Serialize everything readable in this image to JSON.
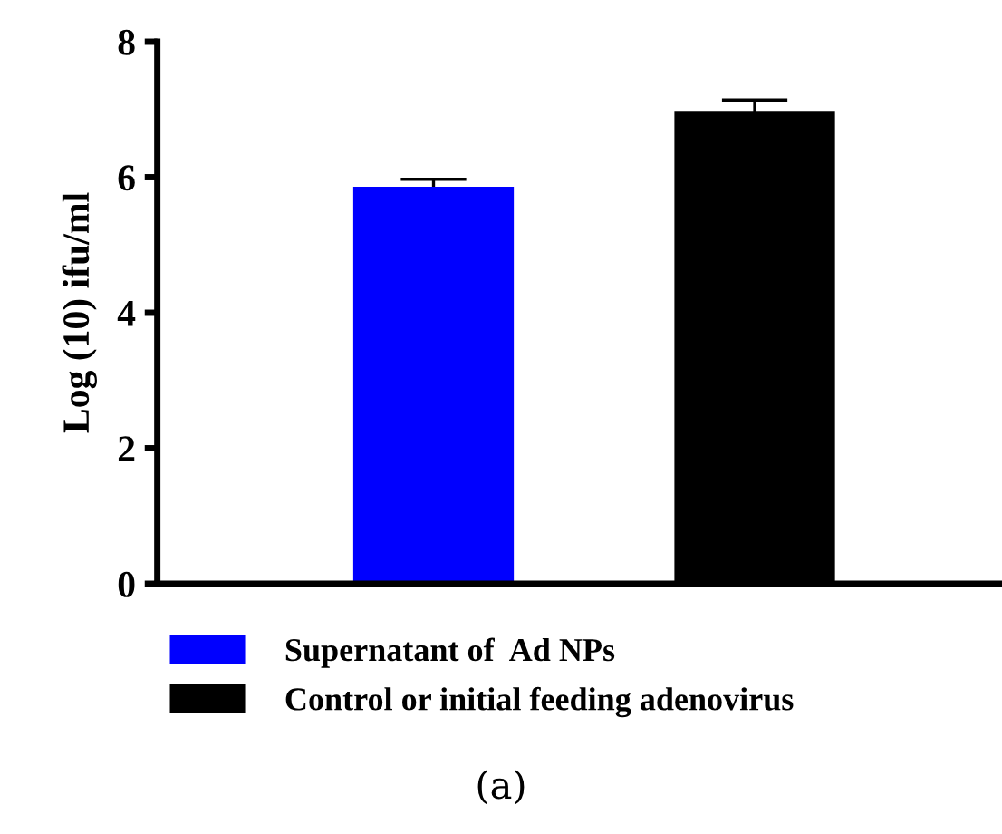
{
  "chart_data": {
    "type": "bar",
    "ylabel": "Log (10) ifu/ml",
    "categories": [
      null,
      null
    ],
    "series": [
      {
        "name": "Supernatant of  Ad NPs",
        "color": "#0000ff",
        "values": [
          5.86,
          null
        ],
        "errors": [
          0.11,
          null
        ]
      },
      {
        "name": "Control or initial feeding adenovirus",
        "color": "#000000",
        "values": [
          null,
          6.98
        ],
        "errors": [
          null,
          0.16
        ]
      }
    ],
    "ylim": [
      0,
      8
    ],
    "yticks": [
      0,
      2,
      4,
      6,
      8
    ],
    "grid": false,
    "legend": "bottom",
    "tick_labels": "y",
    "annotations": [
      "(a)"
    ]
  }
}
